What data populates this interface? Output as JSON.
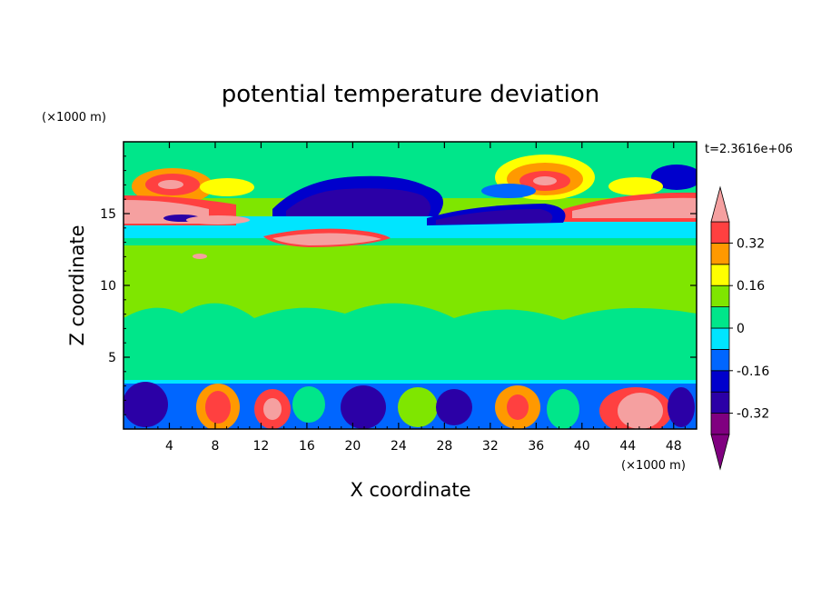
{
  "chart_data": {
    "type": "heatmap",
    "title": "potential temperature deviation",
    "xlabel": "X coordinate",
    "ylabel": "Z coordinate",
    "x_units": "(×1000 m)",
    "y_units": "(×1000 m)",
    "time_label": "t=2.3616e+06",
    "xlim": [
      0,
      50
    ],
    "ylim": [
      0,
      20
    ],
    "x_ticks": [
      4,
      8,
      12,
      16,
      20,
      24,
      28,
      32,
      36,
      40,
      44,
      48
    ],
    "y_ticks": [
      5,
      10,
      15
    ],
    "colorbar": {
      "levels": [
        -0.4,
        -0.32,
        -0.24,
        -0.16,
        -0.08,
        0,
        0.08,
        0.16,
        0.24,
        0.32,
        0.4
      ],
      "labels": [
        "0.32",
        "0.16",
        "0",
        "-0.16",
        "-0.32"
      ],
      "label_values": [
        0.32,
        0.16,
        0,
        -0.16,
        -0.32
      ],
      "colors": [
        "#800080",
        "#2b00a6",
        "#0000cc",
        "#0066ff",
        "#00e5ff",
        "#00e68a",
        "#7fe600",
        "#ffff00",
        "#ff9900",
        "#ff4040",
        "#f5a0a0"
      ]
    }
  }
}
